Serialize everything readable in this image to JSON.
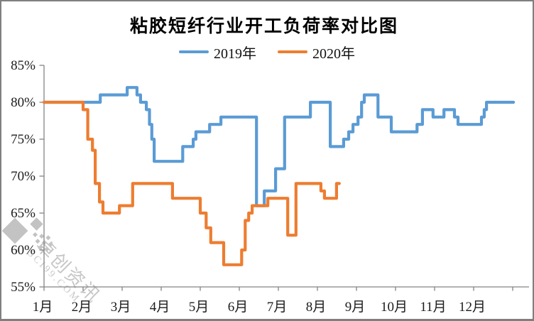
{
  "window": {
    "background": "#ffffff",
    "frame_color": "#7f7f7f"
  },
  "header": {
    "title": "粘胶短纤行业开工负荷率对比图"
  },
  "legend": {
    "items": [
      {
        "label": "2019年",
        "color": "#5b9bd5"
      },
      {
        "label": "2020年",
        "color": "#ed7d31"
      }
    ]
  },
  "watermark": {
    "brand_cn": "卓创资讯",
    "brand_en": "SCI99.COM"
  },
  "chart_data": {
    "type": "line",
    "title": "粘胶短纤行业开工负荷率对比图",
    "subtitle": "",
    "grid": false,
    "legend_position": "top-center",
    "x_axis": {
      "tick_labels": [
        "1月",
        "2月",
        "3月",
        "4月",
        "5月",
        "6月",
        "7月",
        "8月",
        "9月",
        "10月",
        "11月",
        "12月"
      ],
      "min": 1,
      "max": 13
    },
    "y_axis": {
      "tick_labels": [
        "55%",
        "60%",
        "65%",
        "70%",
        "75%",
        "80%",
        "85%"
      ],
      "min": 55,
      "max": 85,
      "tick_step": 5,
      "unit": "%"
    },
    "series": [
      {
        "name": "2019年",
        "color": "#5b9bd5",
        "mode": "step-after",
        "points": [
          [
            1.0,
            80
          ],
          [
            2.44,
            81
          ],
          [
            3.13,
            82
          ],
          [
            3.38,
            81
          ],
          [
            3.47,
            80
          ],
          [
            3.62,
            79
          ],
          [
            3.7,
            77
          ],
          [
            3.76,
            75
          ],
          [
            3.82,
            72
          ],
          [
            4.55,
            74
          ],
          [
            4.82,
            75
          ],
          [
            4.89,
            76
          ],
          [
            5.24,
            77
          ],
          [
            5.53,
            78
          ],
          [
            6.44,
            66
          ],
          [
            6.64,
            68
          ],
          [
            6.93,
            71
          ],
          [
            7.16,
            78
          ],
          [
            7.82,
            80
          ],
          [
            8.33,
            74
          ],
          [
            8.67,
            75
          ],
          [
            8.8,
            76
          ],
          [
            8.91,
            77
          ],
          [
            9.04,
            78
          ],
          [
            9.13,
            80
          ],
          [
            9.2,
            81
          ],
          [
            9.55,
            78
          ],
          [
            9.89,
            76
          ],
          [
            10.55,
            77
          ],
          [
            10.69,
            79
          ],
          [
            10.96,
            78
          ],
          [
            11.24,
            79
          ],
          [
            11.51,
            78
          ],
          [
            11.6,
            77
          ],
          [
            12.2,
            78
          ],
          [
            12.27,
            79
          ],
          [
            12.33,
            80
          ],
          [
            13.02,
            80
          ]
        ]
      },
      {
        "name": "2020年",
        "color": "#ed7d31",
        "mode": "step-after",
        "points": [
          [
            1.0,
            80
          ],
          [
            2.0,
            79
          ],
          [
            2.12,
            75
          ],
          [
            2.24,
            73.5
          ],
          [
            2.31,
            69
          ],
          [
            2.42,
            66.5
          ],
          [
            2.51,
            65
          ],
          [
            2.93,
            66
          ],
          [
            3.27,
            69
          ],
          [
            4.29,
            67
          ],
          [
            5.0,
            65
          ],
          [
            5.15,
            63
          ],
          [
            5.27,
            61
          ],
          [
            5.6,
            58
          ],
          [
            6.06,
            60
          ],
          [
            6.15,
            64
          ],
          [
            6.24,
            65
          ],
          [
            6.33,
            66
          ],
          [
            6.73,
            67
          ],
          [
            7.24,
            62
          ],
          [
            7.45,
            69
          ],
          [
            8.09,
            68
          ],
          [
            8.18,
            67
          ],
          [
            8.49,
            69
          ],
          [
            8.56,
            69
          ]
        ]
      }
    ]
  }
}
